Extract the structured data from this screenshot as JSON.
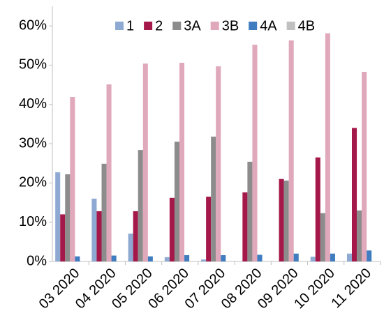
{
  "chart_data": {
    "type": "bar",
    "categories": [
      "03 2020",
      "04 2020",
      "05 2020",
      "06 2020",
      "07 2020",
      "08 2020",
      "09 2020",
      "10 2020",
      "11 2020"
    ],
    "series": [
      {
        "name": "1",
        "color": "#8eaad3",
        "values": [
          22.7,
          16,
          7.1,
          1.1,
          0.5,
          0,
          0,
          1.2,
          2
        ]
      },
      {
        "name": "2",
        "color": "#a5184a",
        "values": [
          12,
          12.8,
          12.8,
          16.2,
          16.5,
          17.6,
          21,
          26.5,
          34
        ]
      },
      {
        "name": "3A",
        "color": "#8c8c8c",
        "values": [
          22.2,
          24.9,
          28.4,
          30.5,
          31.8,
          25.4,
          20.6,
          12.3,
          13
        ]
      },
      {
        "name": "3B",
        "color": "#e0a8bb",
        "values": [
          41.9,
          45.1,
          50.4,
          50.6,
          49.7,
          55.2,
          56.3,
          58.1,
          48.3
        ]
      },
      {
        "name": "4A",
        "color": "#3f7dc0",
        "values": [
          1.3,
          1.5,
          1.3,
          1.6,
          1.6,
          1.7,
          2,
          2,
          2.8
        ]
      },
      {
        "name": "4B",
        "color": "#c0c0c0",
        "values": [
          0,
          0,
          0,
          0,
          0,
          0,
          0,
          0,
          0
        ]
      }
    ],
    "ylim": [
      0,
      65
    ],
    "yticks": [
      {
        "value": 0,
        "label": "0%"
      },
      {
        "value": 10,
        "label": "10%"
      },
      {
        "value": 20,
        "label": "20%"
      },
      {
        "value": 30,
        "label": "30%"
      },
      {
        "value": 40,
        "label": "40%"
      },
      {
        "value": 50,
        "label": "50%"
      },
      {
        "value": 60,
        "label": "60%"
      }
    ],
    "grid": false,
    "legend": "top"
  }
}
